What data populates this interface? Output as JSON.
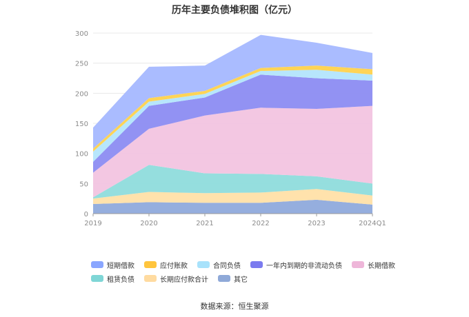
{
  "chart_data": {
    "type": "area",
    "stacked": true,
    "title": "历年主要负债堆积图（亿元）",
    "categories": [
      "2019",
      "2020",
      "2021",
      "2022",
      "2023",
      "2024Q1"
    ],
    "ylim": [
      0,
      300
    ],
    "yticks": [
      0,
      50,
      100,
      150,
      200,
      250,
      300
    ],
    "grid": true,
    "legend_position": "bottom",
    "series": [
      {
        "name": "其它",
        "color": "#8faadc",
        "values": [
          16,
          19,
          18,
          18,
          23,
          15
        ]
      },
      {
        "name": "长期应付款合计",
        "color": "#ffe0a8",
        "values": [
          9,
          17,
          16,
          17,
          18,
          15
        ]
      },
      {
        "name": "租赁负债",
        "color": "#8fdcdc",
        "values": [
          2,
          45,
          33,
          31,
          21,
          20
        ]
      },
      {
        "name": "长期借款",
        "color": "#f2c4e0",
        "values": [
          41,
          60,
          96,
          110,
          112,
          129
        ]
      },
      {
        "name": "一年内到期的非流动负债",
        "color": "#8c8cf2",
        "values": [
          18,
          38,
          30,
          55,
          51,
          42
        ]
      },
      {
        "name": "合同负债",
        "color": "#b3e5fc",
        "values": [
          17,
          7,
          6,
          6,
          14,
          10
        ]
      },
      {
        "name": "应付账款",
        "color": "#ffd24d",
        "values": [
          5,
          6,
          5,
          5,
          7,
          9
        ]
      },
      {
        "name": "短期借款",
        "color": "#a5b8ff",
        "values": [
          35,
          52,
          42,
          55,
          38,
          27
        ]
      }
    ]
  },
  "legend": [
    {
      "label": "短期借款",
      "color": "#8aa6ff"
    },
    {
      "label": "应付账款",
      "color": "#ffc53d"
    },
    {
      "label": "合同负债",
      "color": "#a8e2fb"
    },
    {
      "label": "一年内到期的非流动负债",
      "color": "#7b7bef"
    },
    {
      "label": "长期借款",
      "color": "#eeb6d9"
    },
    {
      "label": "租赁负债",
      "color": "#7fd6d6"
    },
    {
      "label": "长期应付款合计",
      "color": "#ffdba0"
    },
    {
      "label": "其它",
      "color": "#8fa9d8"
    }
  ],
  "source_text": "数据来源：恒生聚源"
}
